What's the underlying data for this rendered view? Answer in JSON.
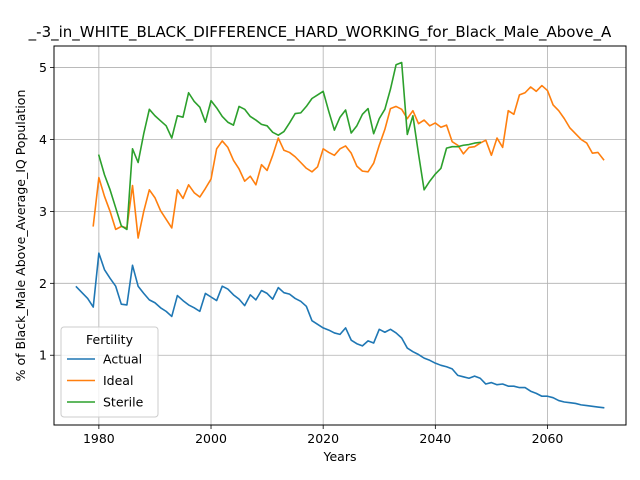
{
  "chart_data": {
    "type": "line",
    "title": "_-3_in_WHITE_BLACK_DIFFERENCE_HARD_WORKING_for_Black_Male_Above_A",
    "xlabel": "Years",
    "ylabel": "% of Black_Male Above_Average_IQ Population",
    "xlim": [
      1972,
      2074
    ],
    "ylim": [
      0.03,
      5.3
    ],
    "xticks": [
      1980,
      2000,
      2020,
      2040,
      2060
    ],
    "yticks": [
      1,
      2,
      3,
      4,
      5
    ],
    "grid": true,
    "legend": {
      "title": "Fertility",
      "placement": "lower-left"
    },
    "series": [
      {
        "name": "Actual",
        "color": "#1f77b4",
        "points": [
          [
            1976,
            1.95
          ],
          [
            1977,
            1.87
          ],
          [
            1978,
            1.79
          ],
          [
            1979,
            1.67
          ],
          [
            1980,
            2.42
          ],
          [
            1981,
            2.19
          ],
          [
            1982,
            2.07
          ],
          [
            1983,
            1.96
          ],
          [
            1984,
            1.71
          ],
          [
            1985,
            1.7
          ],
          [
            1986,
            2.25
          ],
          [
            1987,
            1.96
          ],
          [
            1988,
            1.86
          ],
          [
            1989,
            1.77
          ],
          [
            1990,
            1.73
          ],
          [
            1991,
            1.66
          ],
          [
            1992,
            1.61
          ],
          [
            1993,
            1.54
          ],
          [
            1994,
            1.83
          ],
          [
            1995,
            1.76
          ],
          [
            1996,
            1.7
          ],
          [
            1997,
            1.66
          ],
          [
            1998,
            1.61
          ],
          [
            1999,
            1.86
          ],
          [
            2000,
            1.81
          ],
          [
            2001,
            1.76
          ],
          [
            2002,
            1.96
          ],
          [
            2003,
            1.92
          ],
          [
            2004,
            1.84
          ],
          [
            2005,
            1.78
          ],
          [
            2006,
            1.69
          ],
          [
            2007,
            1.84
          ],
          [
            2008,
            1.77
          ],
          [
            2009,
            1.9
          ],
          [
            2010,
            1.86
          ],
          [
            2011,
            1.78
          ],
          [
            2012,
            1.94
          ],
          [
            2013,
            1.87
          ],
          [
            2014,
            1.85
          ],
          [
            2015,
            1.79
          ],
          [
            2016,
            1.75
          ],
          [
            2017,
            1.68
          ],
          [
            2018,
            1.48
          ],
          [
            2019,
            1.43
          ],
          [
            2020,
            1.38
          ],
          [
            2021,
            1.35
          ],
          [
            2022,
            1.31
          ],
          [
            2023,
            1.29
          ],
          [
            2024,
            1.38
          ],
          [
            2025,
            1.21
          ],
          [
            2026,
            1.16
          ],
          [
            2027,
            1.13
          ],
          [
            2028,
            1.2
          ],
          [
            2029,
            1.17
          ],
          [
            2030,
            1.36
          ],
          [
            2031,
            1.32
          ],
          [
            2032,
            1.36
          ],
          [
            2033,
            1.31
          ],
          [
            2034,
            1.24
          ],
          [
            2035,
            1.1
          ],
          [
            2036,
            1.05
          ],
          [
            2037,
            1.01
          ],
          [
            2038,
            0.96
          ],
          [
            2039,
            0.93
          ],
          [
            2040,
            0.89
          ],
          [
            2041,
            0.86
          ],
          [
            2042,
            0.84
          ],
          [
            2043,
            0.81
          ],
          [
            2044,
            0.72
          ],
          [
            2045,
            0.7
          ],
          [
            2046,
            0.68
          ],
          [
            2047,
            0.71
          ],
          [
            2048,
            0.68
          ],
          [
            2049,
            0.6
          ],
          [
            2050,
            0.62
          ],
          [
            2051,
            0.59
          ],
          [
            2052,
            0.6
          ],
          [
            2053,
            0.57
          ],
          [
            2054,
            0.57
          ],
          [
            2055,
            0.55
          ],
          [
            2056,
            0.55
          ],
          [
            2057,
            0.5
          ],
          [
            2058,
            0.47
          ],
          [
            2059,
            0.43
          ],
          [
            2060,
            0.43
          ],
          [
            2061,
            0.41
          ],
          [
            2062,
            0.37
          ],
          [
            2063,
            0.35
          ],
          [
            2064,
            0.34
          ],
          [
            2065,
            0.33
          ],
          [
            2066,
            0.31
          ],
          [
            2067,
            0.3
          ],
          [
            2068,
            0.29
          ],
          [
            2069,
            0.28
          ],
          [
            2070,
            0.27
          ]
        ]
      },
      {
        "name": "Ideal",
        "color": "#ff7f0e",
        "points": [
          [
            1979,
            2.8
          ],
          [
            1980,
            3.47
          ],
          [
            1981,
            3.21
          ],
          [
            1982,
            3.0
          ],
          [
            1983,
            2.75
          ],
          [
            1984,
            2.79
          ],
          [
            1985,
            2.77
          ],
          [
            1986,
            3.36
          ],
          [
            1987,
            2.63
          ],
          [
            1988,
            3.0
          ],
          [
            1989,
            3.3
          ],
          [
            1990,
            3.19
          ],
          [
            1991,
            3.01
          ],
          [
            1992,
            2.89
          ],
          [
            1993,
            2.77
          ],
          [
            1994,
            3.3
          ],
          [
            1995,
            3.18
          ],
          [
            1996,
            3.37
          ],
          [
            1997,
            3.26
          ],
          [
            1998,
            3.2
          ],
          [
            1999,
            3.32
          ],
          [
            2000,
            3.45
          ],
          [
            2001,
            3.87
          ],
          [
            2002,
            3.98
          ],
          [
            2003,
            3.89
          ],
          [
            2004,
            3.71
          ],
          [
            2005,
            3.59
          ],
          [
            2006,
            3.42
          ],
          [
            2007,
            3.49
          ],
          [
            2008,
            3.37
          ],
          [
            2009,
            3.65
          ],
          [
            2010,
            3.57
          ],
          [
            2011,
            3.78
          ],
          [
            2012,
            4.02
          ],
          [
            2013,
            3.85
          ],
          [
            2014,
            3.82
          ],
          [
            2015,
            3.76
          ],
          [
            2016,
            3.68
          ],
          [
            2017,
            3.6
          ],
          [
            2018,
            3.55
          ],
          [
            2019,
            3.62
          ],
          [
            2020,
            3.87
          ],
          [
            2021,
            3.82
          ],
          [
            2022,
            3.78
          ],
          [
            2023,
            3.87
          ],
          [
            2024,
            3.91
          ],
          [
            2025,
            3.81
          ],
          [
            2026,
            3.63
          ],
          [
            2027,
            3.56
          ],
          [
            2028,
            3.55
          ],
          [
            2029,
            3.67
          ],
          [
            2030,
            3.92
          ],
          [
            2031,
            4.14
          ],
          [
            2032,
            4.43
          ],
          [
            2033,
            4.46
          ],
          [
            2034,
            4.42
          ],
          [
            2035,
            4.29
          ],
          [
            2036,
            4.4
          ],
          [
            2037,
            4.22
          ],
          [
            2038,
            4.27
          ],
          [
            2039,
            4.19
          ],
          [
            2040,
            4.23
          ],
          [
            2041,
            4.17
          ],
          [
            2042,
            4.2
          ],
          [
            2043,
            3.97
          ],
          [
            2044,
            3.92
          ],
          [
            2045,
            3.8
          ],
          [
            2046,
            3.89
          ],
          [
            2047,
            3.9
          ],
          [
            2048,
            3.95
          ],
          [
            2049,
            3.99
          ],
          [
            2050,
            3.78
          ],
          [
            2051,
            4.02
          ],
          [
            2052,
            3.89
          ],
          [
            2053,
            4.4
          ],
          [
            2054,
            4.35
          ],
          [
            2055,
            4.62
          ],
          [
            2056,
            4.65
          ],
          [
            2057,
            4.73
          ],
          [
            2058,
            4.67
          ],
          [
            2059,
            4.75
          ],
          [
            2060,
            4.68
          ],
          [
            2061,
            4.48
          ],
          [
            2062,
            4.4
          ],
          [
            2063,
            4.29
          ],
          [
            2064,
            4.16
          ],
          [
            2065,
            4.08
          ],
          [
            2066,
            4.0
          ],
          [
            2067,
            3.95
          ],
          [
            2068,
            3.81
          ],
          [
            2069,
            3.82
          ],
          [
            2070,
            3.72
          ]
        ]
      },
      {
        "name": "Sterile",
        "color": "#2ca02c",
        "points": [
          [
            1980,
            3.78
          ],
          [
            1981,
            3.51
          ],
          [
            1982,
            3.3
          ],
          [
            1983,
            3.05
          ],
          [
            1984,
            2.8
          ],
          [
            1985,
            2.75
          ],
          [
            1986,
            3.87
          ],
          [
            1987,
            3.68
          ],
          [
            1988,
            4.08
          ],
          [
            1989,
            4.42
          ],
          [
            1990,
            4.33
          ],
          [
            1991,
            4.26
          ],
          [
            1992,
            4.19
          ],
          [
            1993,
            4.02
          ],
          [
            1994,
            4.33
          ],
          [
            1995,
            4.31
          ],
          [
            1996,
            4.65
          ],
          [
            1997,
            4.53
          ],
          [
            1998,
            4.45
          ],
          [
            1999,
            4.24
          ],
          [
            2000,
            4.54
          ],
          [
            2001,
            4.44
          ],
          [
            2002,
            4.32
          ],
          [
            2003,
            4.24
          ],
          [
            2004,
            4.2
          ],
          [
            2005,
            4.46
          ],
          [
            2006,
            4.42
          ],
          [
            2007,
            4.32
          ],
          [
            2008,
            4.27
          ],
          [
            2009,
            4.21
          ],
          [
            2010,
            4.19
          ],
          [
            2011,
            4.1
          ],
          [
            2012,
            4.06
          ],
          [
            2013,
            4.11
          ],
          [
            2014,
            4.23
          ],
          [
            2015,
            4.36
          ],
          [
            2016,
            4.37
          ],
          [
            2017,
            4.46
          ],
          [
            2018,
            4.57
          ],
          [
            2019,
            4.62
          ],
          [
            2020,
            4.67
          ],
          [
            2021,
            4.39
          ],
          [
            2022,
            4.13
          ],
          [
            2023,
            4.31
          ],
          [
            2024,
            4.41
          ],
          [
            2025,
            4.09
          ],
          [
            2026,
            4.19
          ],
          [
            2027,
            4.35
          ],
          [
            2028,
            4.43
          ],
          [
            2029,
            4.08
          ],
          [
            2030,
            4.29
          ],
          [
            2031,
            4.42
          ],
          [
            2032,
            4.7
          ],
          [
            2033,
            5.04
          ],
          [
            2034,
            5.07
          ],
          [
            2035,
            4.07
          ],
          [
            2036,
            4.33
          ],
          [
            2037,
            3.8
          ],
          [
            2038,
            3.3
          ],
          [
            2039,
            3.42
          ],
          [
            2040,
            3.52
          ],
          [
            2041,
            3.6
          ],
          [
            2042,
            3.88
          ],
          [
            2043,
            3.9
          ],
          [
            2044,
            3.9
          ],
          [
            2045,
            3.92
          ],
          [
            2046,
            3.93
          ],
          [
            2047,
            3.95
          ],
          [
            2048,
            3.96
          ]
        ]
      }
    ]
  }
}
